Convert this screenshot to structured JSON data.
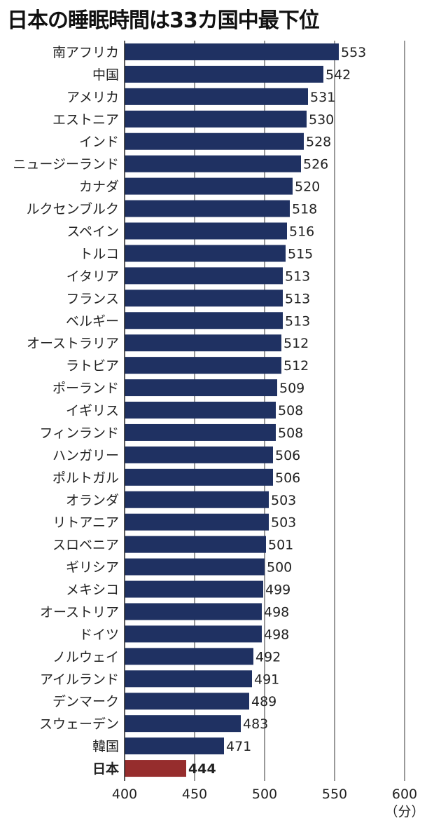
{
  "chart_data": {
    "type": "bar",
    "orientation": "horizontal",
    "title": "日本の睡眠時間は33カ国中最下位",
    "unit": "（分）",
    "categories": [
      "南アフリカ",
      "中国",
      "アメリカ",
      "エストニア",
      "インド",
      "ニュージーランド",
      "カナダ",
      "ルクセンブルク",
      "スペイン",
      "トルコ",
      "イタリア",
      "フランス",
      "ベルギー",
      "オーストラリア",
      "ラトビア",
      "ポーランド",
      "イギリス",
      "フィンランド",
      "ハンガリー",
      "ポルトガル",
      "オランダ",
      "リトアニア",
      "スロベニア",
      "ギリシア",
      "メキシコ",
      "オーストリア",
      "ドイツ",
      "ノルウェイ",
      "アイルランド",
      "デンマーク",
      "スウェーデン",
      "韓国",
      "日本"
    ],
    "values": [
      553,
      542,
      531,
      530,
      528,
      526,
      520,
      518,
      516,
      515,
      513,
      513,
      513,
      512,
      512,
      509,
      508,
      508,
      506,
      506,
      503,
      503,
      501,
      500,
      499,
      498,
      498,
      492,
      491,
      489,
      483,
      471,
      444
    ],
    "xlim": [
      400,
      600
    ],
    "xticks": [
      400,
      450,
      500,
      550,
      600
    ],
    "grid": true,
    "highlight_category": "日本",
    "colors": {
      "bar": "#1f3162",
      "highlight": "#962d2d",
      "grid": "#333333"
    }
  }
}
